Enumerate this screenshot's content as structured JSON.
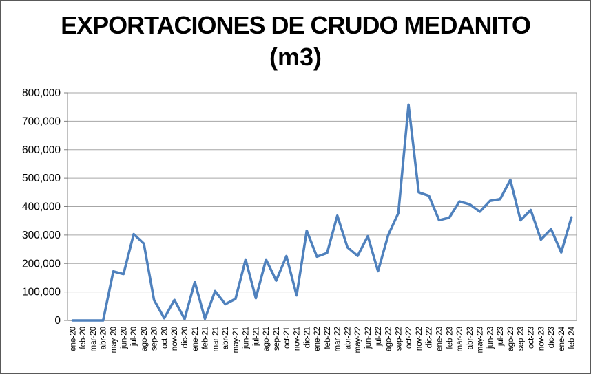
{
  "window": {
    "background": "#ffffff",
    "frame_color": "#595959"
  },
  "chart_data": {
    "type": "line",
    "title": "EXPORTACIONES DE CRUDO MEDANITO (m3)",
    "title_line1": "EXPORTACIONES DE CRUDO MEDANITO",
    "title_line2": "(m3)",
    "categories": [
      "ene-20",
      "feb-20",
      "mar-20",
      "abr-20",
      "may-20",
      "jun-20",
      "jul-20",
      "ago-20",
      "sep-20",
      "oct-20",
      "nov-20",
      "dic-20",
      "ene-21",
      "feb-21",
      "mar-21",
      "abr-21",
      "may-21",
      "jun-21",
      "jul-21",
      "ago-21",
      "sep-21",
      "oct-21",
      "nov-21",
      "dic-21",
      "ene-22",
      "feb-22",
      "mar-22",
      "abr-22",
      "may-22",
      "jun-22",
      "jul-22",
      "ago-22",
      "sep-22",
      "oct-22",
      "nov-22",
      "dic-22",
      "ene-23",
      "feb-23",
      "mar-23",
      "abr-23",
      "may-23",
      "jun-23",
      "jul-23",
      "ago-23",
      "sep-23",
      "oct-23",
      "nov-23",
      "dic-23",
      "ene-24",
      "feb-24"
    ],
    "values": [
      0,
      0,
      0,
      0,
      172000,
      163000,
      303000,
      270000,
      72000,
      8000,
      72000,
      5000,
      135000,
      6000,
      103000,
      57000,
      76000,
      214000,
      78000,
      214000,
      140000,
      226000,
      88000,
      315000,
      224000,
      237000,
      368000,
      257000,
      227000,
      296000,
      173000,
      300000,
      377000,
      758000,
      450000,
      438000,
      352000,
      361000,
      418000,
      408000,
      382000,
      420000,
      426000,
      494000,
      352000,
      388000,
      284000,
      321000,
      239000,
      362000
    ],
    "ylim": [
      0,
      800000
    ],
    "ytick_step": 100000,
    "ytick_labels": [
      "0",
      "100,000",
      "200,000",
      "300,000",
      "400,000",
      "500,000",
      "600,000",
      "700,000",
      "800,000"
    ],
    "xlabel": "",
    "ylabel": "",
    "grid": true,
    "legend": "none",
    "line_color": "#4F81BD",
    "gridline_color": "#A6A6A6",
    "axis_color": "#808080",
    "text_color": "#000000"
  }
}
